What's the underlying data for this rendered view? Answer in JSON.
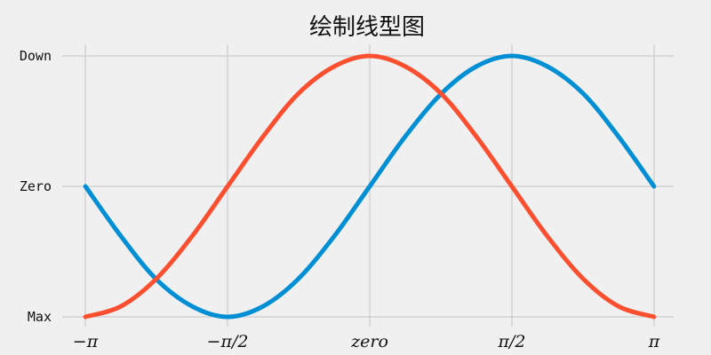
{
  "chart_data": {
    "type": "line",
    "title": "绘制线型图",
    "xlabel": "",
    "ylabel": "",
    "xlim": [
      -3.14159,
      3.14159
    ],
    "ylim": [
      -1,
      1
    ],
    "xticks": [
      {
        "value": -3.14159,
        "label": "−π"
      },
      {
        "value": -1.5708,
        "label": "−π/2"
      },
      {
        "value": 0,
        "label": "zero"
      },
      {
        "value": 1.5708,
        "label": "π/2"
      },
      {
        "value": 3.14159,
        "label": "π"
      }
    ],
    "yticks": [
      {
        "value": -1,
        "label": "Max"
      },
      {
        "value": 0,
        "label": "Zero"
      },
      {
        "value": 1,
        "label": "Down"
      }
    ],
    "grid": true,
    "legend": "none",
    "series": [
      {
        "color": "#008fd5",
        "x": [
          -3.14,
          -2.75,
          -2.36,
          -1.96,
          -1.57,
          -1.18,
          -0.79,
          -0.39,
          0.0,
          0.39,
          0.79,
          1.18,
          1.57,
          1.96,
          2.36,
          2.75,
          3.14
        ],
        "y": [
          0.0,
          -0.38,
          -0.71,
          -0.92,
          -1.0,
          -0.92,
          -0.71,
          -0.38,
          0.0,
          0.38,
          0.71,
          0.92,
          1.0,
          0.92,
          0.71,
          0.38,
          0.0
        ]
      },
      {
        "color": "#fc4f30",
        "x": [
          -3.14,
          -2.75,
          -2.36,
          -1.96,
          -1.57,
          -1.18,
          -0.79,
          -0.39,
          0.0,
          0.39,
          0.79,
          1.18,
          1.57,
          1.96,
          2.36,
          2.75,
          3.14
        ],
        "y": [
          -1.0,
          -0.92,
          -0.71,
          -0.38,
          0.0,
          0.38,
          0.71,
          0.92,
          1.0,
          0.92,
          0.71,
          0.38,
          0.0,
          -0.38,
          -0.71,
          -0.92,
          -1.0
        ]
      }
    ]
  }
}
